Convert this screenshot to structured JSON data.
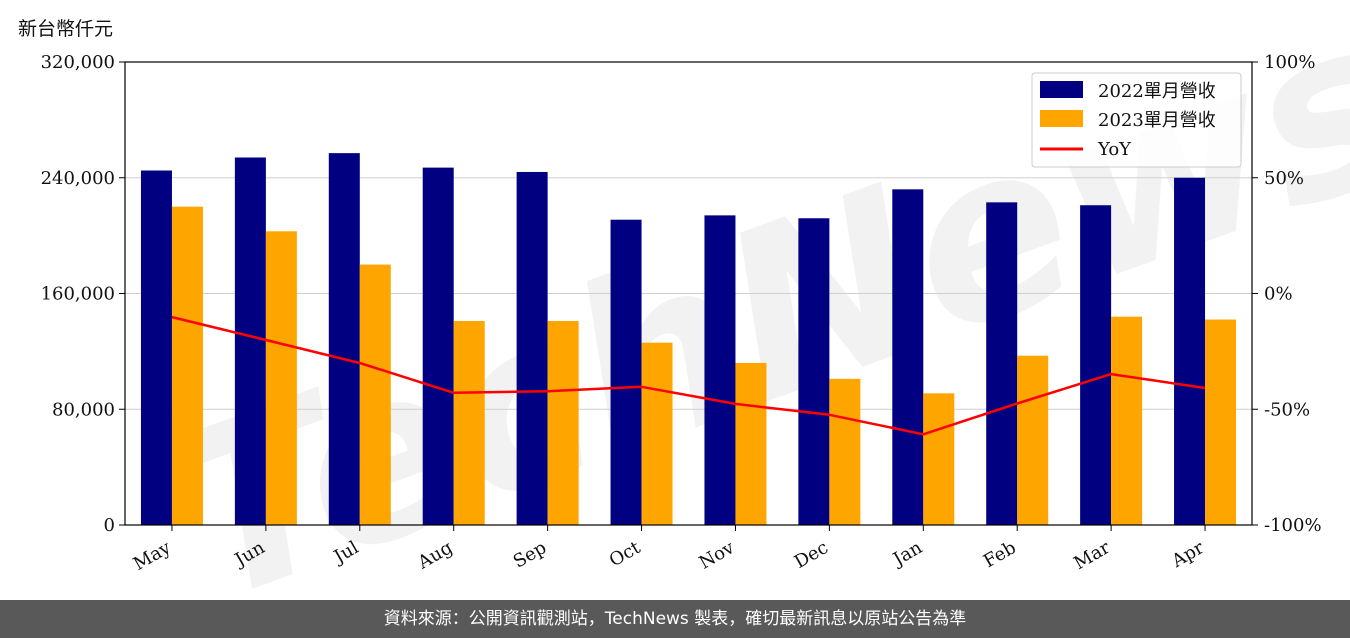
{
  "unit_label": "新台幣仟元",
  "watermark": "TechNews",
  "footer": "資料來源：公開資訊觀測站，TechNews 製表，確切最新訊息以原站公告為準",
  "colors": {
    "series_2022": "#000080",
    "series_2023": "#FFA500",
    "yoy": "#FF0000"
  },
  "chart_data": {
    "type": "bar",
    "categories": [
      "May",
      "Jun",
      "Jul",
      "Aug",
      "Sep",
      "Oct",
      "Nov",
      "Dec",
      "Jan",
      "Feb",
      "Mar",
      "Apr"
    ],
    "series": [
      {
        "name": "2022單月營收",
        "type": "bar",
        "axis": "left",
        "values": [
          245000,
          254000,
          257000,
          247000,
          244000,
          211000,
          214000,
          212000,
          232000,
          223000,
          221000,
          240000
        ]
      },
      {
        "name": "2023單月營收",
        "type": "bar",
        "axis": "left",
        "values": [
          220000,
          203000,
          180000,
          141000,
          141000,
          126000,
          112000,
          101000,
          91000,
          117000,
          144000,
          142000
        ]
      },
      {
        "name": "YoY",
        "type": "line",
        "axis": "right",
        "values": [
          -10.2,
          -20.1,
          -30.0,
          -42.9,
          -42.2,
          -40.3,
          -47.7,
          -52.4,
          -60.8,
          -47.5,
          -34.8,
          -40.8
        ]
      }
    ],
    "y_left": {
      "min": 0,
      "max": 320000,
      "ticks": [
        0,
        80000,
        160000,
        240000,
        320000
      ],
      "tick_labels": [
        "0",
        "80,000",
        "160,000",
        "240,000",
        "320,000"
      ]
    },
    "y_right": {
      "min": -100,
      "max": 100,
      "ticks": [
        -100,
        -50,
        0,
        50,
        100
      ],
      "tick_labels": [
        "-100%",
        "-50%",
        "0%",
        "50%",
        "100%"
      ]
    },
    "grid": true,
    "legend_position": "top-right"
  }
}
